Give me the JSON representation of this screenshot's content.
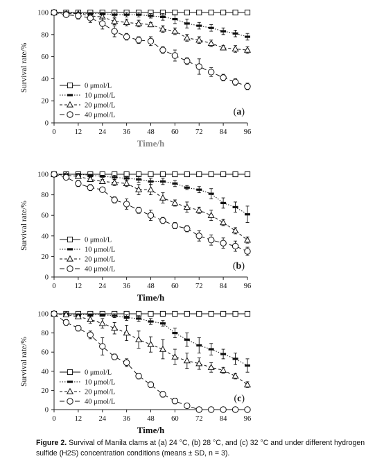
{
  "colors": {
    "axis": "#222222",
    "line": "#111111",
    "time_label": "#888888"
  },
  "series_styles": [
    {
      "marker": "square",
      "dash": "none"
    },
    {
      "marker": "bar",
      "dash": "1.5,2"
    },
    {
      "marker": "triangle",
      "dash": "4,3"
    },
    {
      "marker": "circle",
      "dash": "7,4"
    }
  ],
  "chart_data": [
    {
      "type": "line",
      "panel_label": "(a)",
      "xlabel": "Time/h",
      "ylabel": "Survival rate/%",
      "xlim": [
        0,
        96
      ],
      "ylim": [
        0,
        100
      ],
      "xticks": [
        0,
        12,
        24,
        36,
        48,
        60,
        72,
        84,
        96
      ],
      "yticks": [
        0,
        20,
        40,
        60,
        80,
        100
      ],
      "legend": "bottom-left",
      "series": [
        {
          "name": "0 μmol/L",
          "x": [
            0,
            6,
            12,
            18,
            24,
            30,
            36,
            42,
            48,
            54,
            60,
            66,
            72,
            78,
            84,
            90,
            96
          ],
          "y": [
            100,
            100,
            100,
            100,
            100,
            100,
            100,
            100,
            100,
            100,
            100,
            100,
            100,
            100,
            100,
            100,
            100
          ],
          "err": [
            0,
            0,
            0,
            0,
            0,
            0,
            0,
            0,
            0,
            0,
            0,
            0,
            0,
            0,
            0,
            0,
            0
          ]
        },
        {
          "name": "10 μmol/L",
          "x": [
            0,
            6,
            12,
            18,
            24,
            30,
            36,
            42,
            48,
            54,
            60,
            66,
            72,
            78,
            84,
            90,
            96
          ],
          "y": [
            100,
            100,
            99,
            99,
            99,
            98,
            98,
            98,
            97,
            96,
            94,
            90,
            88,
            86,
            83,
            81,
            78
          ],
          "err": [
            0,
            0,
            1,
            1,
            1,
            2,
            2,
            2,
            2,
            3,
            4,
            4,
            3,
            3,
            3,
            3,
            3
          ]
        },
        {
          "name": "20 μmol/L",
          "x": [
            0,
            6,
            12,
            18,
            24,
            30,
            36,
            42,
            48,
            54,
            60,
            66,
            72,
            78,
            84,
            90,
            96
          ],
          "y": [
            100,
            99,
            99,
            97,
            96,
            92,
            91,
            90,
            89,
            85,
            83,
            77,
            75,
            72,
            68,
            67,
            66
          ],
          "err": [
            0,
            1,
            1,
            2,
            2,
            3,
            3,
            3,
            2,
            3,
            3,
            3,
            3,
            3,
            2,
            3,
            3
          ]
        },
        {
          "name": "40 μmol/L",
          "x": [
            0,
            6,
            12,
            18,
            24,
            30,
            36,
            42,
            48,
            54,
            60,
            66,
            72,
            78,
            84,
            90,
            96
          ],
          "y": [
            100,
            98,
            97,
            95,
            90,
            83,
            78,
            75,
            74,
            66,
            61,
            56,
            51,
            46,
            41,
            37,
            33
          ],
          "err": [
            0,
            2,
            3,
            4,
            5,
            5,
            3,
            3,
            4,
            3,
            5,
            3,
            7,
            4,
            3,
            3,
            3
          ]
        }
      ]
    },
    {
      "type": "line",
      "panel_label": "(b)",
      "xlabel": "Time/h",
      "ylabel": "Survival rate/%",
      "xlim": [
        0,
        96
      ],
      "ylim": [
        0,
        100
      ],
      "xticks": [
        0,
        12,
        24,
        36,
        48,
        60,
        72,
        84,
        96
      ],
      "yticks": [
        0,
        20,
        40,
        60,
        80,
        100
      ],
      "legend": "bottom-left",
      "series": [
        {
          "name": "0 μmol/L",
          "x": [
            0,
            6,
            12,
            18,
            24,
            30,
            36,
            42,
            48,
            54,
            60,
            66,
            72,
            78,
            84,
            90,
            96
          ],
          "y": [
            100,
            100,
            100,
            100,
            100,
            100,
            100,
            100,
            100,
            100,
            100,
            100,
            100,
            100,
            100,
            100,
            100
          ],
          "err": [
            0,
            0,
            0,
            0,
            0,
            0,
            0,
            0,
            0,
            0,
            0,
            0,
            0,
            0,
            0,
            0,
            0
          ]
        },
        {
          "name": "10 μmol/L",
          "x": [
            0,
            6,
            12,
            18,
            24,
            30,
            36,
            42,
            48,
            54,
            60,
            66,
            72,
            78,
            84,
            90,
            96
          ],
          "y": [
            100,
            100,
            100,
            99,
            98,
            97,
            96,
            95,
            93,
            93,
            91,
            87,
            85,
            81,
            72,
            68,
            61
          ],
          "err": [
            0,
            0,
            0,
            1,
            1,
            2,
            2,
            3,
            3,
            3,
            3,
            2,
            3,
            5,
            5,
            5,
            8
          ]
        },
        {
          "name": "20 μmol/L",
          "x": [
            0,
            6,
            12,
            18,
            24,
            30,
            36,
            42,
            48,
            54,
            60,
            66,
            72,
            78,
            84,
            90,
            96
          ],
          "y": [
            100,
            99,
            98,
            95,
            93,
            92,
            91,
            85,
            85,
            77,
            72,
            68,
            65,
            60,
            53,
            45,
            36
          ],
          "err": [
            0,
            1,
            2,
            2,
            2,
            3,
            3,
            5,
            5,
            5,
            3,
            5,
            3,
            5,
            3,
            3,
            3
          ]
        },
        {
          "name": "40 μmol/L",
          "x": [
            0,
            6,
            12,
            18,
            24,
            30,
            36,
            42,
            48,
            54,
            60,
            66,
            72,
            78,
            84,
            90,
            96
          ],
          "y": [
            100,
            97,
            91,
            87,
            85,
            75,
            71,
            65,
            60,
            55,
            50,
            47,
            40,
            36,
            33,
            30,
            25
          ],
          "err": [
            0,
            2,
            3,
            3,
            2,
            3,
            5,
            3,
            5,
            3,
            3,
            3,
            5,
            5,
            5,
            5,
            4
          ]
        }
      ]
    },
    {
      "type": "line",
      "panel_label": "(c)",
      "xlabel": "Time/h",
      "ylabel": "Survival rate/%",
      "xlim": [
        0,
        96
      ],
      "ylim": [
        0,
        100
      ],
      "xticks": [
        0,
        12,
        24,
        36,
        48,
        60,
        72,
        84,
        96
      ],
      "yticks": [
        0,
        20,
        40,
        60,
        80,
        100
      ],
      "legend": "bottom-left",
      "series": [
        {
          "name": "0 μmol/L",
          "x": [
            0,
            6,
            12,
            18,
            24,
            30,
            36,
            42,
            48,
            54,
            60,
            66,
            72,
            78,
            84,
            90,
            96
          ],
          "y": [
            100,
            100,
            100,
            100,
            100,
            100,
            100,
            100,
            100,
            100,
            100,
            100,
            100,
            100,
            100,
            100,
            100
          ],
          "err": [
            0,
            0,
            0,
            0,
            0,
            0,
            0,
            0,
            0,
            0,
            0,
            0,
            0,
            0,
            0,
            0,
            0
          ]
        },
        {
          "name": "10 μmol/L",
          "x": [
            0,
            6,
            12,
            18,
            24,
            30,
            36,
            42,
            48,
            54,
            60,
            66,
            72,
            78,
            84,
            90,
            96
          ],
          "y": [
            100,
            100,
            99,
            99,
            99,
            98,
            96,
            95,
            92,
            90,
            80,
            73,
            67,
            63,
            58,
            53,
            46
          ],
          "err": [
            0,
            0,
            1,
            1,
            1,
            2,
            3,
            3,
            3,
            3,
            5,
            7,
            8,
            6,
            5,
            6,
            7
          ]
        },
        {
          "name": "20 μmol/L",
          "x": [
            0,
            6,
            12,
            18,
            24,
            30,
            36,
            42,
            48,
            54,
            60,
            66,
            72,
            78,
            84,
            90,
            96
          ],
          "y": [
            100,
            99,
            97,
            94,
            90,
            85,
            80,
            73,
            68,
            63,
            55,
            51,
            48,
            44,
            41,
            35,
            26
          ],
          "err": [
            0,
            1,
            2,
            4,
            5,
            6,
            8,
            9,
            8,
            10,
            8,
            8,
            6,
            5,
            3,
            3,
            3
          ]
        },
        {
          "name": "40 μmol/L",
          "x": [
            0,
            6,
            12,
            18,
            24,
            30,
            36,
            42,
            48,
            54,
            60,
            66,
            72,
            78,
            84,
            90,
            96
          ],
          "y": [
            100,
            91,
            85,
            78,
            66,
            55,
            49,
            35,
            26,
            16,
            9,
            4,
            0,
            0,
            0,
            0,
            0
          ],
          "err": [
            0,
            3,
            3,
            4,
            9,
            3,
            4,
            3,
            3,
            3,
            3,
            2,
            0,
            0,
            0,
            0,
            0
          ]
        }
      ]
    }
  ],
  "caption": {
    "label": "Figure 2.",
    "text": "Survival of Manila clams at (a) 24 °C, (b) 28 °C, and (c) 32 °C and under different hydrogen sulfide (H2S) concentration conditions (means ± SD, n = 3)."
  }
}
